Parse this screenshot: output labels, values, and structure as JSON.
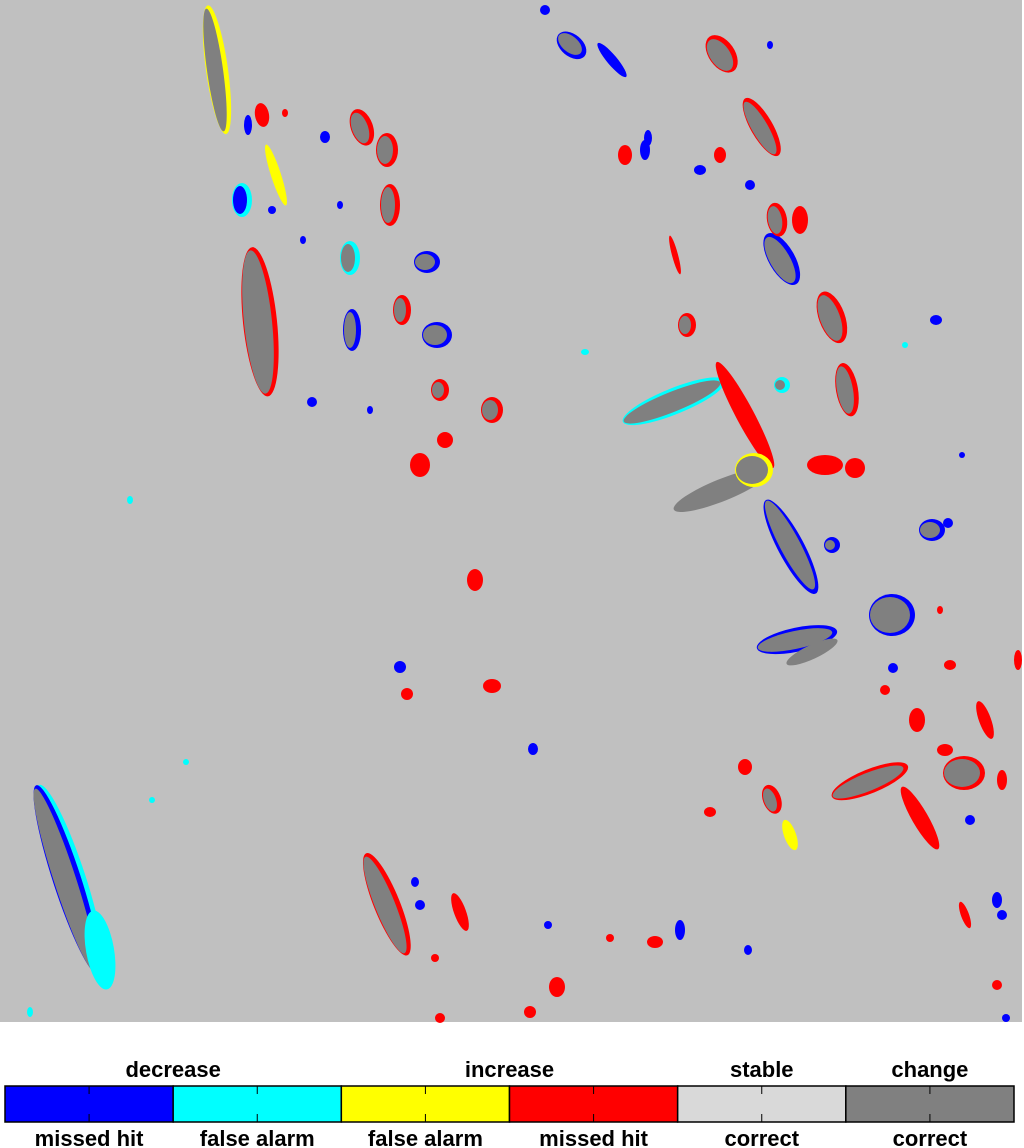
{
  "legend": {
    "groups": [
      {
        "label": "decrease"
      },
      {
        "label": "increase"
      },
      {
        "label": "stable"
      },
      {
        "label": "change"
      }
    ],
    "items": [
      {
        "label": "missed hit",
        "color": "#0000ff"
      },
      {
        "label": "false alarm",
        "color": "#00ffff"
      },
      {
        "label": "false alarm",
        "color": "#ffff00"
      },
      {
        "label": "missed hit",
        "color": "#ff0000"
      },
      {
        "label": "correct",
        "color": "#d9d9d9"
      },
      {
        "label": "correct",
        "color": "#808080"
      }
    ]
  }
}
